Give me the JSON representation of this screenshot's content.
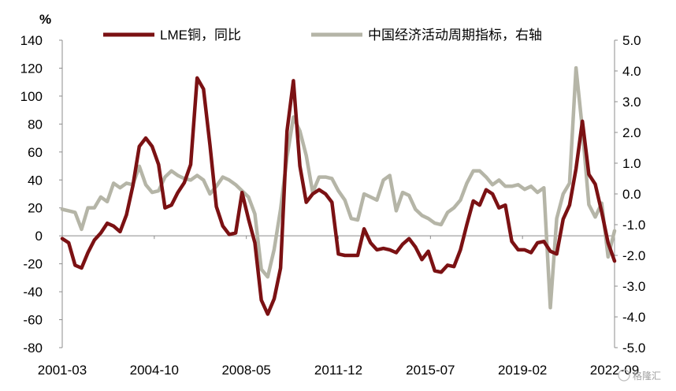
{
  "chart_data": {
    "type": "line",
    "unit_label": "%",
    "left_axis": {
      "ylim": [
        -80,
        140
      ],
      "ticks": [
        140,
        120,
        100,
        80,
        60,
        40,
        20,
        0,
        -20,
        -40,
        -60,
        -80
      ],
      "tick_labels": [
        "140",
        "120",
        "100",
        "80",
        "60",
        "40",
        "20",
        "0",
        "-20",
        "-40",
        "-60",
        "-80"
      ]
    },
    "right_axis": {
      "ylim": [
        -5.0,
        5.0
      ],
      "ticks": [
        5.0,
        4.0,
        3.0,
        2.0,
        1.0,
        0.0,
        -1.0,
        -2.0,
        -3.0,
        -4.0,
        -5.0
      ],
      "tick_labels": [
        "5.0",
        "4.0",
        "3.0",
        "2.0",
        "1.0",
        "0.0",
        "-1.0",
        "-2.0",
        "-3.0",
        "-4.0",
        "-5.0"
      ]
    },
    "x_axis": {
      "start": "2001-03",
      "end": "2022-09",
      "tick_labels": [
        "2001-03",
        "2004-10",
        "2008-05",
        "2011-12",
        "2015-07",
        "2019-02",
        "2022-09"
      ]
    },
    "grid": false,
    "legend_position": "top",
    "series": [
      {
        "name": "LME铜，同比",
        "axis": "left",
        "color": "#7b1113",
        "points": [
          [
            "2001-03",
            -2
          ],
          [
            "2001-06",
            -5
          ],
          [
            "2001-09",
            -21
          ],
          [
            "2001-12",
            -23
          ],
          [
            "2002-03",
            -12
          ],
          [
            "2002-06",
            -3
          ],
          [
            "2002-09",
            2
          ],
          [
            "2002-12",
            9
          ],
          [
            "2003-03",
            7
          ],
          [
            "2003-06",
            3
          ],
          [
            "2003-09",
            15
          ],
          [
            "2003-12",
            36
          ],
          [
            "2004-03",
            64
          ],
          [
            "2004-06",
            70
          ],
          [
            "2004-09",
            64
          ],
          [
            "2004-12",
            51
          ],
          [
            "2005-03",
            20
          ],
          [
            "2005-06",
            22
          ],
          [
            "2005-09",
            31
          ],
          [
            "2005-12",
            38
          ],
          [
            "2006-03",
            51
          ],
          [
            "2006-06",
            113
          ],
          [
            "2006-09",
            105
          ],
          [
            "2006-12",
            65
          ],
          [
            "2007-03",
            21
          ],
          [
            "2007-06",
            7
          ],
          [
            "2007-09",
            1
          ],
          [
            "2007-12",
            2
          ],
          [
            "2008-03",
            31
          ],
          [
            "2008-06",
            12
          ],
          [
            "2008-09",
            -5
          ],
          [
            "2008-12",
            -46
          ],
          [
            "2009-03",
            -56
          ],
          [
            "2009-06",
            -45
          ],
          [
            "2009-09",
            -23
          ],
          [
            "2009-12",
            75
          ],
          [
            "2010-03",
            111
          ],
          [
            "2010-06",
            50
          ],
          [
            "2010-09",
            24
          ],
          [
            "2010-12",
            30
          ],
          [
            "2011-03",
            33
          ],
          [
            "2011-06",
            30
          ],
          [
            "2011-09",
            24
          ],
          [
            "2011-12",
            -13
          ],
          [
            "2012-03",
            -14
          ],
          [
            "2012-06",
            -14
          ],
          [
            "2012-09",
            -14
          ],
          [
            "2012-12",
            5
          ],
          [
            "2013-03",
            -5
          ],
          [
            "2013-06",
            -10
          ],
          [
            "2013-09",
            -9
          ],
          [
            "2013-12",
            -10
          ],
          [
            "2014-03",
            -12
          ],
          [
            "2014-06",
            -6
          ],
          [
            "2014-09",
            -2
          ],
          [
            "2014-12",
            -8
          ],
          [
            "2015-03",
            -17
          ],
          [
            "2015-06",
            -11
          ],
          [
            "2015-09",
            -25
          ],
          [
            "2015-12",
            -26
          ],
          [
            "2016-03",
            -21
          ],
          [
            "2016-06",
            -22
          ],
          [
            "2016-09",
            -10
          ],
          [
            "2016-12",
            8
          ],
          [
            "2017-03",
            25
          ],
          [
            "2017-06",
            22
          ],
          [
            "2017-09",
            33
          ],
          [
            "2017-12",
            30
          ],
          [
            "2018-03",
            20
          ],
          [
            "2018-06",
            22
          ],
          [
            "2018-09",
            -4
          ],
          [
            "2018-12",
            -10
          ],
          [
            "2019-03",
            -10
          ],
          [
            "2019-06",
            -12
          ],
          [
            "2019-09",
            -5
          ],
          [
            "2019-12",
            -4
          ],
          [
            "2020-03",
            -11
          ],
          [
            "2020-06",
            -13
          ],
          [
            "2020-09",
            12
          ],
          [
            "2020-12",
            22
          ],
          [
            "2021-03",
            48
          ],
          [
            "2021-06",
            82
          ],
          [
            "2021-09",
            44
          ],
          [
            "2021-12",
            37
          ],
          [
            "2022-03",
            17
          ],
          [
            "2022-06",
            -5
          ],
          [
            "2022-09",
            -18
          ]
        ]
      },
      {
        "name": "中国经济活动周期指标，右轴",
        "axis": "right",
        "color": "#b5b5a7",
        "points": [
          [
            "2001-03",
            -0.5
          ],
          [
            "2001-06",
            -0.55
          ],
          [
            "2001-09",
            -0.6
          ],
          [
            "2001-12",
            -1.15
          ],
          [
            "2002-03",
            -0.45
          ],
          [
            "2002-06",
            -0.45
          ],
          [
            "2002-09",
            -0.1
          ],
          [
            "2002-12",
            -0.25
          ],
          [
            "2003-03",
            0.35
          ],
          [
            "2003-06",
            0.2
          ],
          [
            "2003-09",
            0.35
          ],
          [
            "2003-12",
            0.3
          ],
          [
            "2004-03",
            0.9
          ],
          [
            "2004-06",
            0.3
          ],
          [
            "2004-09",
            0.05
          ],
          [
            "2004-12",
            0.1
          ],
          [
            "2005-03",
            0.55
          ],
          [
            "2005-06",
            0.75
          ],
          [
            "2005-09",
            0.6
          ],
          [
            "2005-12",
            0.5
          ],
          [
            "2006-03",
            0.45
          ],
          [
            "2006-06",
            0.6
          ],
          [
            "2006-09",
            0.45
          ],
          [
            "2006-12",
            0.0
          ],
          [
            "2007-03",
            0.25
          ],
          [
            "2007-06",
            0.55
          ],
          [
            "2007-09",
            0.45
          ],
          [
            "2007-12",
            0.3
          ],
          [
            "2008-03",
            0.1
          ],
          [
            "2008-06",
            -0.1
          ],
          [
            "2008-09",
            -0.65
          ],
          [
            "2008-12",
            -2.45
          ],
          [
            "2009-03",
            -2.7
          ],
          [
            "2009-06",
            -1.8
          ],
          [
            "2009-09",
            -0.5
          ],
          [
            "2009-12",
            1.2
          ],
          [
            "2010-03",
            2.5
          ],
          [
            "2010-06",
            2.05
          ],
          [
            "2010-09",
            1.25
          ],
          [
            "2010-12",
            0.05
          ],
          [
            "2011-03",
            0.55
          ],
          [
            "2011-06",
            0.55
          ],
          [
            "2011-09",
            0.5
          ],
          [
            "2011-12",
            0.1
          ],
          [
            "2012-03",
            -0.2
          ],
          [
            "2012-06",
            -0.8
          ],
          [
            "2012-09",
            -0.85
          ],
          [
            "2012-12",
            0.0
          ],
          [
            "2013-03",
            -0.1
          ],
          [
            "2013-06",
            -0.2
          ],
          [
            "2013-09",
            0.45
          ],
          [
            "2013-12",
            0.6
          ],
          [
            "2014-03",
            -0.55
          ],
          [
            "2014-06",
            0.05
          ],
          [
            "2014-09",
            -0.05
          ],
          [
            "2014-12",
            -0.5
          ],
          [
            "2015-03",
            -0.7
          ],
          [
            "2015-06",
            -0.8
          ],
          [
            "2015-09",
            -0.95
          ],
          [
            "2015-12",
            -1.0
          ],
          [
            "2016-03",
            -0.6
          ],
          [
            "2016-06",
            -0.45
          ],
          [
            "2016-09",
            -0.2
          ],
          [
            "2016-12",
            0.35
          ],
          [
            "2017-03",
            0.75
          ],
          [
            "2017-06",
            0.75
          ],
          [
            "2017-09",
            0.55
          ],
          [
            "2017-12",
            0.3
          ],
          [
            "2018-03",
            0.45
          ],
          [
            "2018-06",
            0.25
          ],
          [
            "2018-09",
            0.25
          ],
          [
            "2018-12",
            0.3
          ],
          [
            "2019-03",
            0.15
          ],
          [
            "2019-06",
            0.25
          ],
          [
            "2019-09",
            0.05
          ],
          [
            "2019-12",
            0.2
          ],
          [
            "2020-03",
            -3.7
          ],
          [
            "2020-06",
            -0.8
          ],
          [
            "2020-09",
            0.0
          ],
          [
            "2020-12",
            0.35
          ],
          [
            "2021-03",
            4.1
          ],
          [
            "2021-06",
            2.1
          ],
          [
            "2021-09",
            -0.35
          ],
          [
            "2021-12",
            -0.75
          ],
          [
            "2022-03",
            -0.3
          ],
          [
            "2022-06",
            -2.05
          ],
          [
            "2022-09",
            -1.2
          ]
        ]
      }
    ]
  },
  "watermark_text": "格隆汇"
}
